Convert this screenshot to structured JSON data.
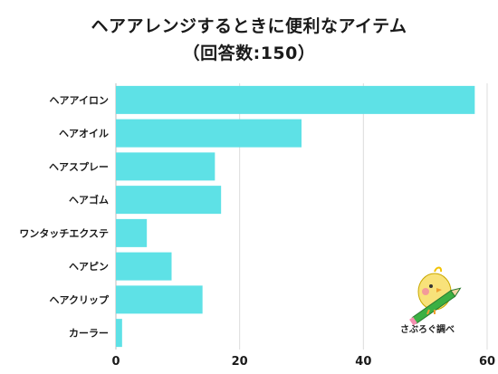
{
  "title": {
    "line1": "ヘアアレンジするときに便利なアイテム",
    "line2": "（回答数:150）"
  },
  "credit": "さぶろぐ調べ",
  "colors": {
    "bar": "#5ee1e6",
    "grid": "#dcdcdc",
    "axis": "#bdbdbd",
    "text": "#1a1a1a"
  },
  "chart_data": {
    "type": "bar",
    "orientation": "horizontal",
    "categories": [
      "ヘアアイロン",
      "ヘアオイル",
      "ヘアスプレー",
      "ヘアゴム",
      "ワンタッチエクステ",
      "ヘアピン",
      "ヘアクリップ",
      "カーラー"
    ],
    "values": [
      58,
      30,
      16,
      17,
      5,
      9,
      14,
      1
    ],
    "xlim": [
      0,
      60
    ],
    "xticks": [
      0,
      20,
      40,
      60
    ],
    "grid": true,
    "title": "ヘアアレンジするときに便利なアイテム（回答数:150）",
    "xlabel": "",
    "ylabel": ""
  }
}
